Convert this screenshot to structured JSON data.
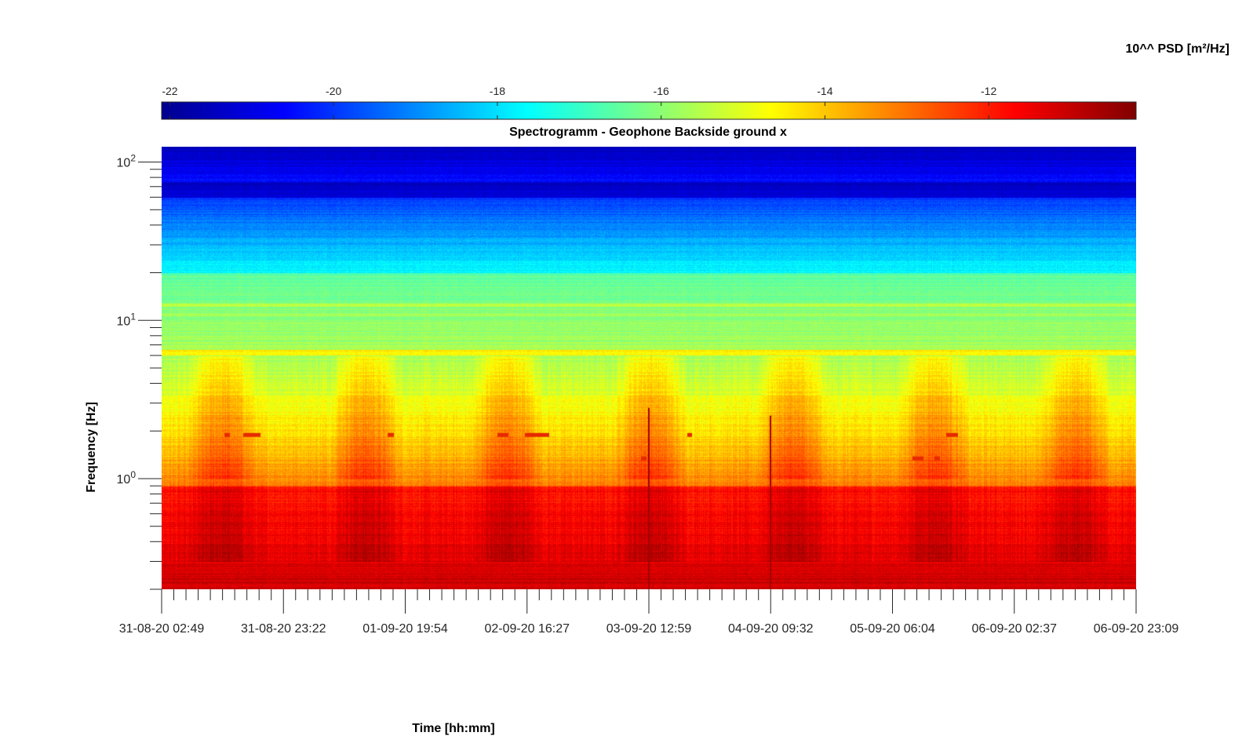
{
  "chart_data": {
    "type": "heatmap",
    "title": "Spectrogramm - Geophone Backside ground x",
    "xlabel": "Time [hh:mm]",
    "ylabel": "Frequency [Hz]",
    "colorbar": {
      "label": "10^^ PSD [m²/Hz]",
      "ticks": [
        "-22",
        "-20",
        "-18",
        "-16",
        "-14",
        "-12"
      ],
      "tick_values": [
        -22,
        -20,
        -18,
        -16,
        -14,
        -12
      ],
      "range": [
        -22.1,
        -10.2
      ],
      "colormap": "jet"
    },
    "x_ticks": [
      "31-08-20 02:49",
      "31-08-20 23:22",
      "01-09-20 19:54",
      "02-09-20 16:27",
      "03-09-20 12:59",
      "04-09-20 09:32",
      "05-09-20 06:04",
      "06-09-20 02:37",
      "06-09-20 23:09"
    ],
    "y_scale": "log",
    "y_ticks": [
      {
        "base": "10",
        "exp": "0",
        "value": 1
      },
      {
        "base": "10",
        "exp": "1",
        "value": 10
      },
      {
        "base": "10",
        "exp": "2",
        "value": 100
      }
    ],
    "ylim": [
      0.2,
      125
    ],
    "xlim": [
      "31-08-20 02:49",
      "06-09-20 23:09"
    ]
  }
}
